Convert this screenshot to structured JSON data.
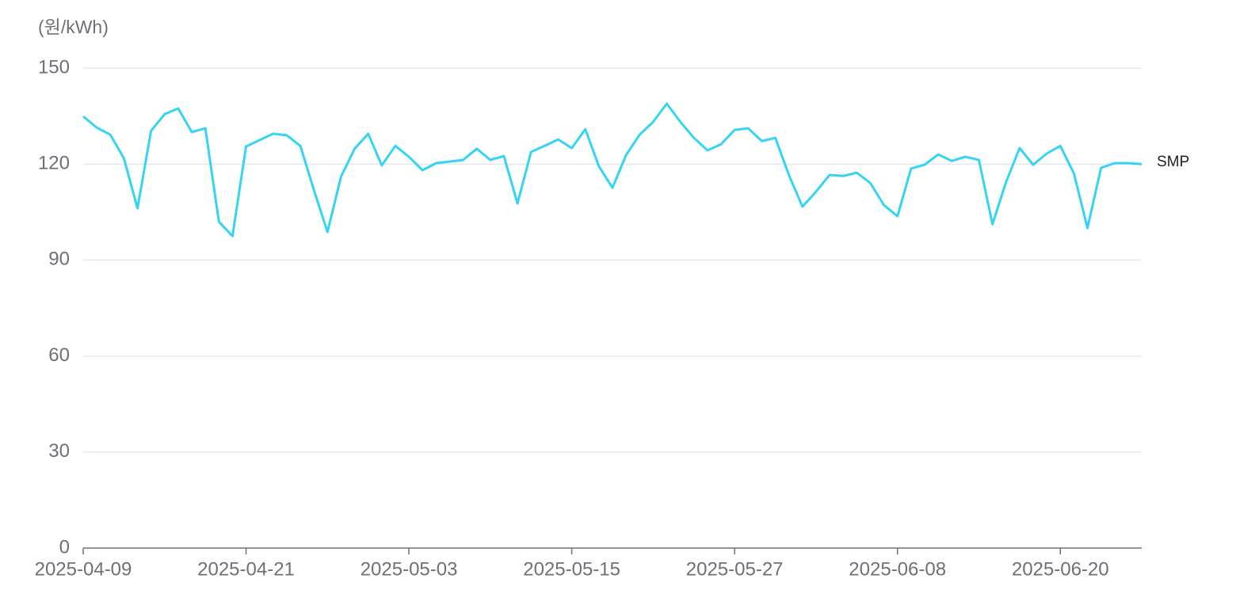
{
  "chart_data": {
    "type": "line",
    "y_label": "(원/kWh)",
    "x": [
      "2025-04-09",
      "2025-04-10",
      "2025-04-11",
      "2025-04-12",
      "2025-04-13",
      "2025-04-14",
      "2025-04-15",
      "2025-04-16",
      "2025-04-17",
      "2025-04-18",
      "2025-04-19",
      "2025-04-20",
      "2025-04-21",
      "2025-04-22",
      "2025-04-23",
      "2025-04-24",
      "2025-04-25",
      "2025-04-26",
      "2025-04-27",
      "2025-04-28",
      "2025-04-29",
      "2025-04-30",
      "2025-05-01",
      "2025-05-02",
      "2025-05-03",
      "2025-05-04",
      "2025-05-05",
      "2025-05-06",
      "2025-05-07",
      "2025-05-08",
      "2025-05-09",
      "2025-05-10",
      "2025-05-11",
      "2025-05-12",
      "2025-05-13",
      "2025-05-14",
      "2025-05-15",
      "2025-05-16",
      "2025-05-17",
      "2025-05-18",
      "2025-05-19",
      "2025-05-20",
      "2025-05-21",
      "2025-05-22",
      "2025-05-23",
      "2025-05-24",
      "2025-05-25",
      "2025-05-26",
      "2025-05-27",
      "2025-05-28",
      "2025-05-29",
      "2025-05-30",
      "2025-05-31",
      "2025-06-01",
      "2025-06-02",
      "2025-06-03",
      "2025-06-04",
      "2025-06-05",
      "2025-06-06",
      "2025-06-07",
      "2025-06-08",
      "2025-06-09",
      "2025-06-10",
      "2025-06-11",
      "2025-06-12",
      "2025-06-13",
      "2025-06-14",
      "2025-06-15",
      "2025-06-16",
      "2025-06-17",
      "2025-06-18",
      "2025-06-19",
      "2025-06-20",
      "2025-06-21",
      "2025-06-22",
      "2025-06-23",
      "2025-06-24",
      "2025-06-25",
      "2025-06-26"
    ],
    "series": [
      {
        "name": "SMP",
        "color": "#35d3f5",
        "values": [
          134.9,
          131.4,
          129.2,
          121.8,
          106.2,
          130.4,
          135.6,
          137.4,
          130,
          131.2,
          102,
          97.5,
          125.5,
          127.5,
          129.5,
          129,
          125.7,
          111.9,
          98.8,
          116.1,
          124.8,
          129.5,
          119.6,
          125.7,
          122.3,
          118.1,
          120.3,
          120.8,
          121.3,
          124.8,
          121.3,
          122.5,
          107.7,
          123.8,
          125.7,
          127.7,
          125,
          130.9,
          119.3,
          112.6,
          122.8,
          129.2,
          133.2,
          138.9,
          133.2,
          128.2,
          124.3,
          126.2,
          130.7,
          131.2,
          127.2,
          128.2,
          116.6,
          106.7,
          111.4,
          116.6,
          116.3,
          117.3,
          114.1,
          107.2,
          103.7,
          118.6,
          119.8,
          123,
          121,
          122.3,
          121.3,
          101.2,
          114.4,
          125,
          119.8,
          123.3,
          125.7,
          117.1,
          100,
          118.8,
          120.3,
          120.3,
          120
        ]
      }
    ],
    "xlim": [
      "2025-04-09",
      "2025-06-26"
    ],
    "xticks": [
      "2025-04-09",
      "2025-04-21",
      "2025-05-03",
      "2025-05-15",
      "2025-05-27",
      "2025-06-08",
      "2025-06-20"
    ],
    "ylim": [
      0,
      150
    ],
    "yticks": [
      0,
      30,
      60,
      90,
      120,
      150
    ],
    "grid": true
  }
}
